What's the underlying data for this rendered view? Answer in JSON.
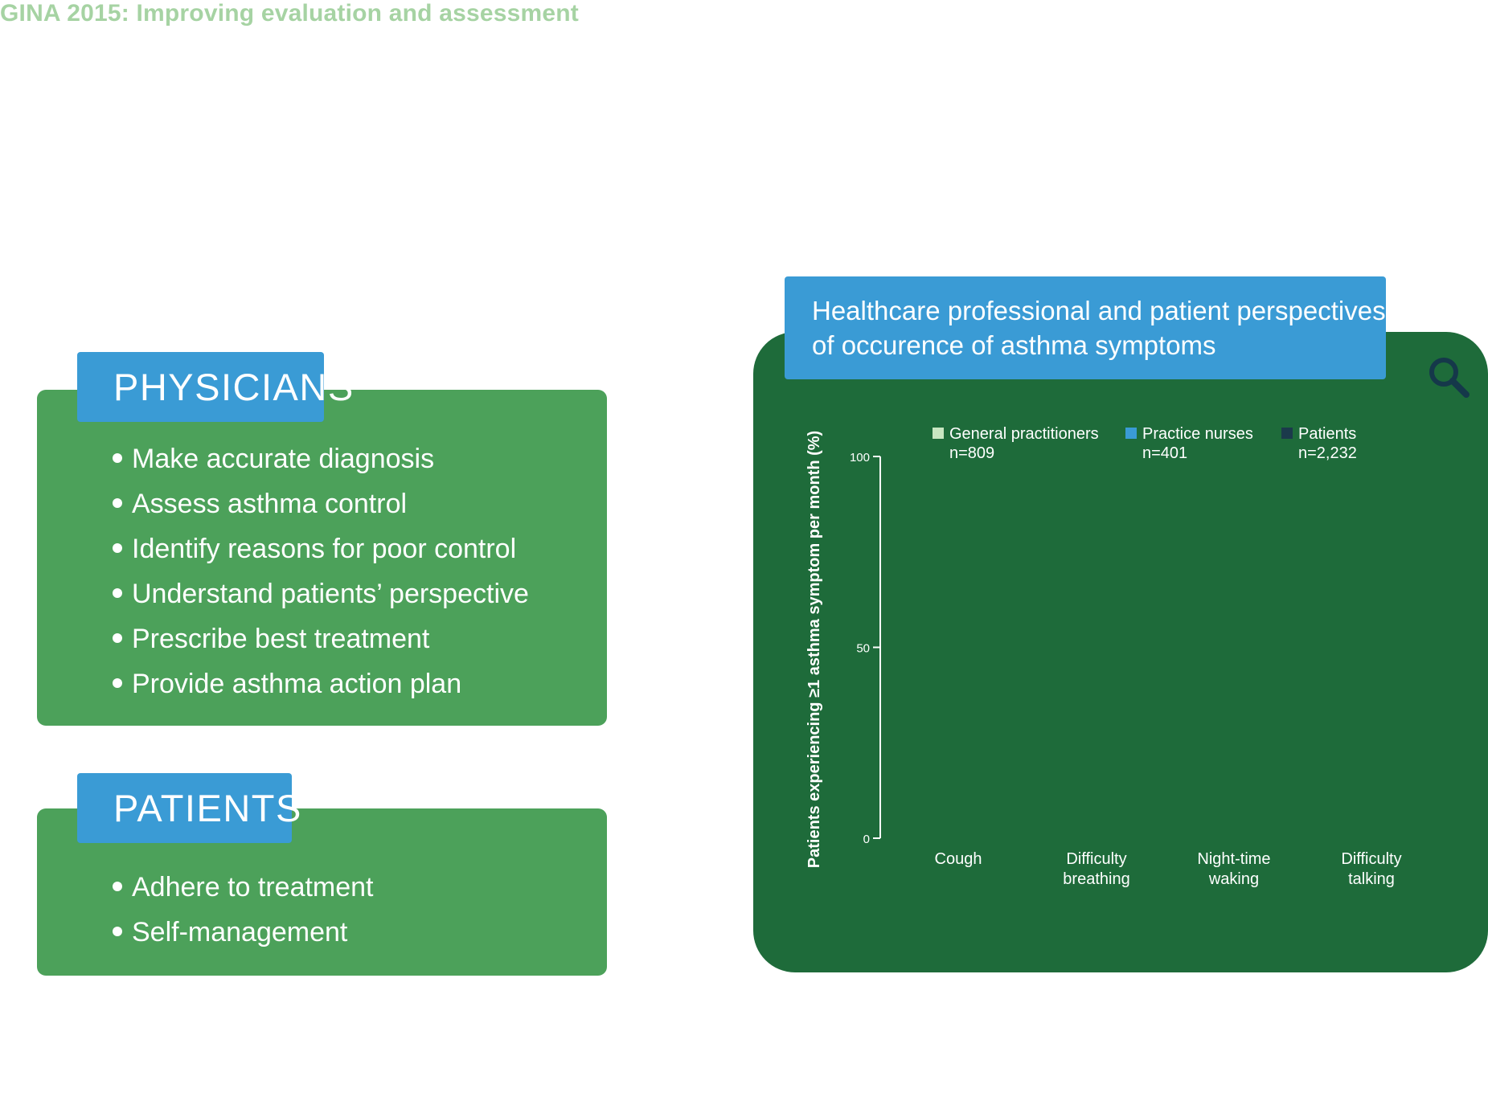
{
  "header": {
    "title": "GINA 2015: Improving evaluation and assessment"
  },
  "physicians": {
    "heading": "PHYSICIANS",
    "items": [
      "Make accurate diagnosis",
      "Assess asthma control",
      "Identify reasons for poor control",
      "Understand patients’ perspective",
      "Prescribe best treatment",
      "Provide asthma action plan"
    ]
  },
  "patients": {
    "heading": "PATIENTS",
    "items": [
      "Adhere to treatment",
      "Self-management"
    ]
  },
  "chart_panel": {
    "title_line1": "Healthcare professional and patient perspectives",
    "title_line2": "of occurence of asthma symptoms",
    "icon": "search-icon"
  },
  "colors": {
    "panel_green": "#4ca15a",
    "chart_green": "#1e6b3a",
    "accent_blue": "#3a9bd5",
    "title_green": "#a6d3a3"
  },
  "chart_data": {
    "type": "bar",
    "title": "Healthcare professional and patient perspectives of occurence of asthma symptoms",
    "ylabel": "Patients experiencing ≥1 asthma symptom per month (%)",
    "xlabel": "",
    "ylim": [
      0,
      100
    ],
    "yticks": [
      "0",
      "50",
      "100"
    ],
    "categories": [
      [
        "Cough"
      ],
      [
        "Difficulty",
        "breathing"
      ],
      [
        "Night-time",
        "waking"
      ],
      [
        "Difficulty",
        "talking"
      ]
    ],
    "series": [
      {
        "name": "General practitioners",
        "n": "n=809",
        "color": "#c8e6c1"
      },
      {
        "name": "Practice nurses",
        "n": "n=401",
        "color": "#3a9bd5"
      },
      {
        "name": "Patients",
        "n": "n=2,232",
        "color": "#1b3a4b"
      }
    ],
    "legend": "top",
    "grid": false
  }
}
